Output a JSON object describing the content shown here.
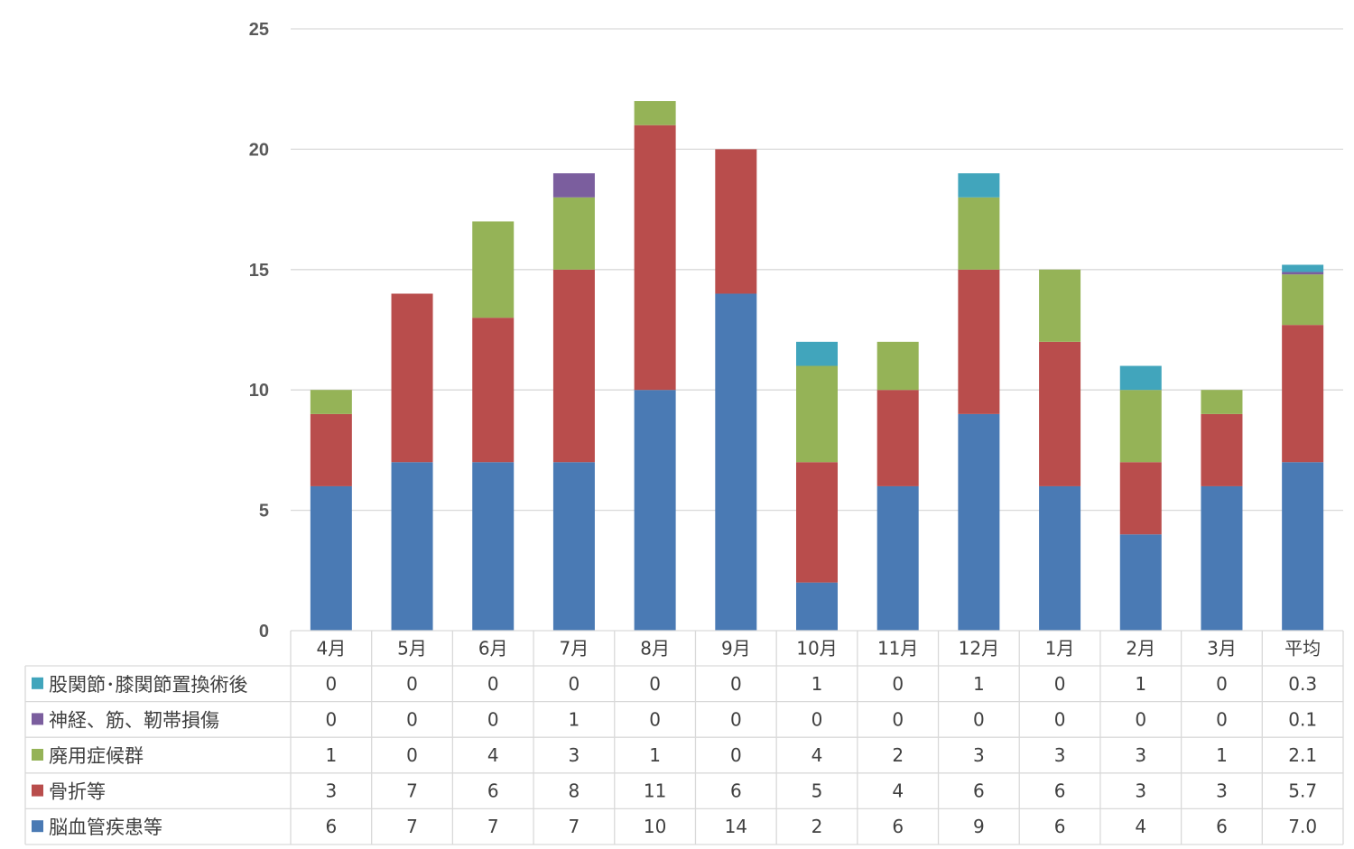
{
  "chart_data": {
    "type": "bar",
    "stacked": true,
    "categories": [
      "4月",
      "5月",
      "6月",
      "7月",
      "8月",
      "9月",
      "10月",
      "11月",
      "12月",
      "1月",
      "2月",
      "3月",
      "平均"
    ],
    "ylim": [
      0,
      25
    ],
    "yticks": [
      0,
      5,
      10,
      15,
      20,
      25
    ],
    "grid": true,
    "legend_position": "bottom-left data table",
    "series": [
      {
        "name": "脳血管疾患等",
        "color": "#4a7ab4",
        "values": [
          6,
          7,
          7,
          7,
          10,
          14,
          2,
          6,
          9,
          6,
          4,
          6,
          7.0
        ],
        "labels": [
          "6",
          "7",
          "7",
          "7",
          "10",
          "14",
          "2",
          "6",
          "9",
          "6",
          "4",
          "6",
          "7.0"
        ]
      },
      {
        "name": "骨折等",
        "color": "#b94d4c",
        "values": [
          3,
          7,
          6,
          8,
          11,
          6,
          5,
          4,
          6,
          6,
          3,
          3,
          5.7
        ],
        "labels": [
          "3",
          "7",
          "6",
          "8",
          "11",
          "6",
          "5",
          "4",
          "6",
          "6",
          "3",
          "3",
          "5.7"
        ]
      },
      {
        "name": "廃用症候群",
        "color": "#95b357",
        "values": [
          1,
          0,
          4,
          3,
          1,
          0,
          4,
          2,
          3,
          3,
          3,
          1,
          2.1
        ],
        "labels": [
          "1",
          "0",
          "4",
          "3",
          "1",
          "0",
          "4",
          "2",
          "3",
          "3",
          "3",
          "1",
          "2.1"
        ]
      },
      {
        "name": "神経、筋、靭帯損傷",
        "color": "#7b5e9e",
        "values": [
          0,
          0,
          0,
          1,
          0,
          0,
          0,
          0,
          0,
          0,
          0,
          0,
          0.1
        ],
        "labels": [
          "0",
          "0",
          "0",
          "1",
          "0",
          "0",
          "0",
          "0",
          "0",
          "0",
          "0",
          "0",
          "0.1"
        ]
      },
      {
        "name": "股関節･膝関節置換術後",
        "color": "#41a5bc",
        "values": [
          0,
          0,
          0,
          0,
          0,
          0,
          1,
          0,
          1,
          0,
          1,
          0,
          0.3
        ],
        "labels": [
          "0",
          "0",
          "0",
          "0",
          "0",
          "0",
          "1",
          "0",
          "1",
          "0",
          "1",
          "0",
          "0.3"
        ]
      }
    ]
  }
}
